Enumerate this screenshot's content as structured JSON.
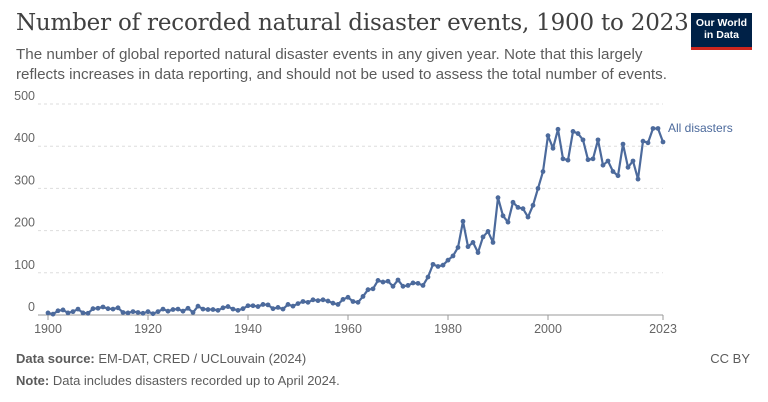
{
  "header": {
    "title": "Number of recorded natural disaster events, 1900 to 2023",
    "subtitle": "The number of global reported natural disaster events in any given year. Note that this largely reflects increases in data reporting, and should not be used to assess the total number of events."
  },
  "logo": {
    "line1": "Our World",
    "line2": "in Data"
  },
  "footer": {
    "source_label": "Data source:",
    "source_text": "EM-DAT, CRED / UCLouvain (2024)",
    "note_label": "Note:",
    "note_text": "Data includes disasters recorded up to April 2024.",
    "license": "CC BY"
  },
  "colors": {
    "series": "#4c6a9c",
    "grid": "#dddddd",
    "axis_text": "#666666"
  },
  "chart_data": {
    "type": "line",
    "title": "Number of recorded natural disaster events, 1900 to 2023",
    "xlabel": "",
    "ylabel": "",
    "xlim": [
      1898,
      2023
    ],
    "ylim": [
      0,
      500
    ],
    "y_ticks": [
      0,
      100,
      200,
      300,
      400,
      500
    ],
    "x_ticks": [
      {
        "value": 1900,
        "label": "1900"
      },
      {
        "value": 1920,
        "label": "1920"
      },
      {
        "value": 1940,
        "label": "1940"
      },
      {
        "value": 1960,
        "label": "1960"
      },
      {
        "value": 1980,
        "label": "1980"
      },
      {
        "value": 2000,
        "label": "2000"
      },
      {
        "value": 2023,
        "label": "2023"
      }
    ],
    "grid": true,
    "series": [
      {
        "name": "All disasters",
        "label": "All disasters",
        "x": [
          1900,
          1901,
          1902,
          1903,
          1904,
          1905,
          1906,
          1907,
          1908,
          1909,
          1910,
          1911,
          1912,
          1913,
          1914,
          1915,
          1916,
          1917,
          1918,
          1919,
          1920,
          1921,
          1922,
          1923,
          1924,
          1925,
          1926,
          1927,
          1928,
          1929,
          1930,
          1931,
          1932,
          1933,
          1934,
          1935,
          1936,
          1937,
          1938,
          1939,
          1940,
          1941,
          1942,
          1943,
          1944,
          1945,
          1946,
          1947,
          1948,
          1949,
          1950,
          1951,
          1952,
          1953,
          1954,
          1955,
          1956,
          1957,
          1958,
          1959,
          1960,
          1961,
          1962,
          1963,
          1964,
          1965,
          1966,
          1967,
          1968,
          1969,
          1970,
          1971,
          1972,
          1973,
          1974,
          1975,
          1976,
          1977,
          1978,
          1979,
          1980,
          1981,
          1982,
          1983,
          1984,
          1985,
          1986,
          1987,
          1988,
          1989,
          1990,
          1991,
          1992,
          1993,
          1994,
          1995,
          1996,
          1997,
          1998,
          1999,
          2000,
          2001,
          2002,
          2003,
          2004,
          2005,
          2006,
          2007,
          2008,
          2009,
          2010,
          2011,
          2012,
          2013,
          2014,
          2015,
          2016,
          2017,
          2018,
          2019,
          2020,
          2021,
          2022,
          2023
        ],
        "values": [
          5,
          2,
          10,
          12,
          5,
          8,
          14,
          5,
          4,
          15,
          16,
          19,
          15,
          14,
          17,
          6,
          5,
          8,
          6,
          4,
          8,
          3,
          8,
          14,
          9,
          13,
          14,
          9,
          16,
          6,
          21,
          14,
          13,
          13,
          11,
          17,
          20,
          14,
          11,
          15,
          22,
          22,
          20,
          25,
          24,
          15,
          18,
          14,
          25,
          21,
          27,
          32,
          30,
          36,
          34,
          36,
          33,
          28,
          25,
          37,
          42,
          32,
          30,
          44,
          60,
          62,
          82,
          78,
          80,
          68,
          83,
          68,
          70,
          76,
          75,
          70,
          90,
          120,
          115,
          118,
          130,
          140,
          160,
          222,
          162,
          172,
          148,
          185,
          198,
          172,
          278,
          235,
          220,
          267,
          255,
          252,
          232,
          260,
          300,
          340,
          425,
          395,
          440,
          370,
          367,
          435,
          430,
          415,
          368,
          370,
          415,
          355,
          365,
          340,
          330,
          405,
          350,
          365,
          322,
          412,
          408,
          442,
          442,
          410
        ]
      }
    ]
  }
}
